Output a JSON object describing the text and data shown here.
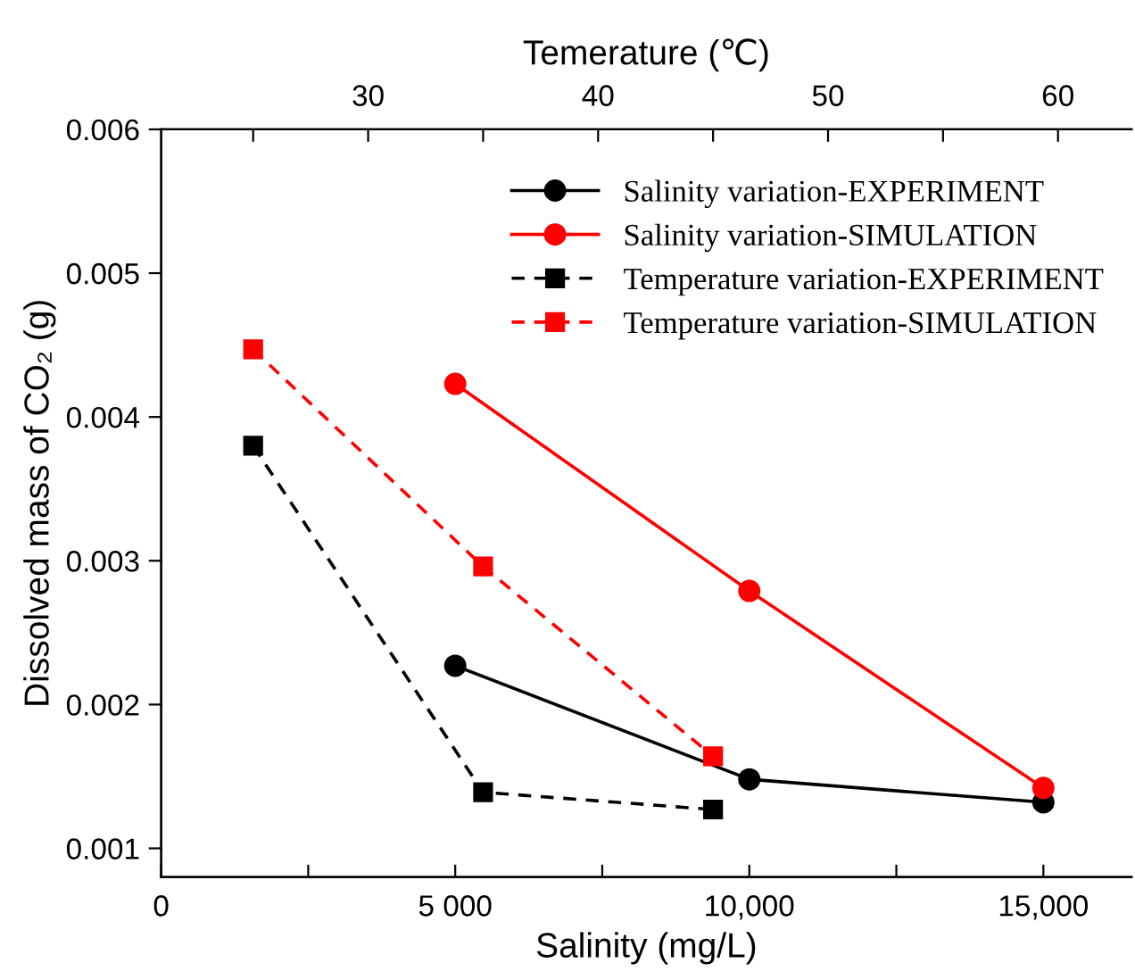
{
  "chart_data": {
    "type": "line",
    "xlabel": "Salinity (mg/L)",
    "x2label": "Temerature (℃)",
    "ylabel": "Dissolved mass of CO₂ (g)",
    "xlim": [
      0,
      16500
    ],
    "xticks": [
      0,
      {
        "value": 2500,
        "label": null
      },
      {
        "value": 5000,
        "label": "5 000"
      },
      {
        "value": 7500,
        "label": null
      },
      {
        "value": 10000,
        "label": "10,000"
      },
      {
        "value": 12500,
        "label": null
      },
      {
        "value": 15000,
        "label": "15,000"
      }
    ],
    "x2lim": [
      21,
      63.2
    ],
    "x2ticks": [
      {
        "value": 25,
        "label": null
      },
      30,
      {
        "value": 35,
        "label": null
      },
      40,
      {
        "value": 45,
        "label": null
      },
      50,
      {
        "value": 55,
        "label": null
      },
      60
    ],
    "ylim": [
      0.0008,
      0.006
    ],
    "yticks": [
      0.001,
      0.002,
      0.003,
      0.004,
      0.005,
      0.006
    ],
    "grid": false,
    "legend": "top right",
    "series": [
      {
        "name": "Salinity variation-EXPERIMENT",
        "color": "#000000",
        "marker": "circle",
        "line_style": "solid",
        "x": [
          5000,
          10000,
          15000
        ],
        "values": [
          0.00227,
          0.00148,
          0.00132
        ]
      },
      {
        "name": "Salinity variation-SIMULATION",
        "color": "#ff0000",
        "marker": "circle",
        "line_style": "solid",
        "x": [
          5000,
          10000,
          15000
        ],
        "values": [
          0.00423,
          0.00279,
          0.00142
        ]
      },
      {
        "name": "Temperature variation-EXPERIMENT",
        "color": "#000000",
        "marker": "square",
        "line_style": "dashed",
        "axis": "x2",
        "x": [
          25,
          35,
          45
        ],
        "values": [
          0.0038,
          0.00139,
          0.00127
        ]
      },
      {
        "name": "Temperature variation-SIMULATION",
        "color": "#ff0000",
        "marker": "square",
        "line_style": "dashed",
        "axis": "x2",
        "x": [
          25,
          35,
          45
        ],
        "values": [
          0.00447,
          0.00296,
          0.00164
        ]
      }
    ]
  }
}
